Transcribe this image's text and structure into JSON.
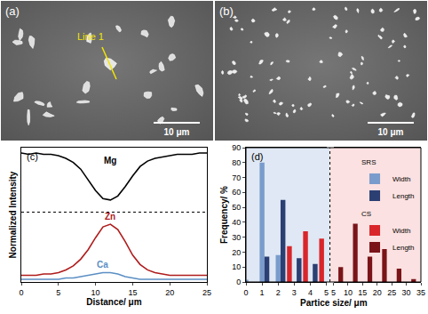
{
  "images": [
    {
      "label": "(a)",
      "annotation": "Line 1",
      "scale_bar": "10 μm"
    },
    {
      "label": "(b)",
      "scale_bar": "10 μm"
    }
  ],
  "chart_data": [
    {
      "label": "(c)",
      "type": "line",
      "x_label": "Distance/ μm",
      "y_label": "Normalized Intensity",
      "x": [
        0,
        1,
        2,
        3,
        4,
        5,
        6,
        7,
        8,
        9,
        10,
        11,
        12,
        13,
        14,
        15,
        16,
        17,
        18,
        19,
        20,
        21,
        22,
        23,
        24,
        25
      ],
      "series": [
        {
          "name": "Mg",
          "color": "#000000",
          "values": [
            0.96,
            0.95,
            0.96,
            0.95,
            0.95,
            0.94,
            0.92,
            0.89,
            0.84,
            0.76,
            0.68,
            0.62,
            0.61,
            0.64,
            0.71,
            0.79,
            0.86,
            0.9,
            0.92,
            0.93,
            0.94,
            0.95,
            0.95,
            0.95,
            0.96,
            0.96
          ]
        },
        {
          "name": "Zn",
          "color": "#b01c1c",
          "values": [
            0.05,
            0.05,
            0.05,
            0.06,
            0.06,
            0.07,
            0.09,
            0.12,
            0.17,
            0.24,
            0.33,
            0.41,
            0.43,
            0.39,
            0.3,
            0.2,
            0.13,
            0.09,
            0.07,
            0.06,
            0.05,
            0.05,
            0.05,
            0.05,
            0.05,
            0.05
          ]
        },
        {
          "name": "Ca",
          "color": "#5b8fc4",
          "values": [
            0.02,
            0.02,
            0.02,
            0.02,
            0.02,
            0.02,
            0.03,
            0.03,
            0.04,
            0.05,
            0.06,
            0.07,
            0.07,
            0.06,
            0.04,
            0.03,
            0.02,
            0.02,
            0.02,
            0.02,
            0.02,
            0.02,
            0.02,
            0.02,
            0.02,
            0.02
          ]
        }
      ],
      "separator": 0.52,
      "xlim": [
        0,
        25
      ],
      "xticks": [
        0,
        5,
        10,
        15,
        20,
        25
      ],
      "ylim": [
        0,
        1
      ],
      "tick_labels": "x",
      "grid": false
    },
    {
      "label": "(d)",
      "type": "bar",
      "x_label": "Partice size/ μm",
      "y_label": "Frequency/ %",
      "series": [
        {
          "name": "Width",
          "group": "SRS",
          "color": "#7a9ccc",
          "axis": "x",
          "x": [
            0,
            1,
            2
          ],
          "values": [
            1.5,
            80,
            18
          ]
        },
        {
          "name": "Length",
          "group": "SRS",
          "color": "#2b3f73",
          "axis": "x",
          "x": [
            1.3,
            2.3,
            3.3,
            4.3
          ],
          "values": [
            17,
            55,
            16,
            12
          ]
        },
        {
          "name": "Width",
          "group": "CS",
          "color": "#d9262b",
          "axis": "x",
          "x": [
            2.7,
            3.7,
            4.7
          ],
          "values": [
            24,
            34,
            29
          ]
        },
        {
          "name": "Length",
          "group": "CS",
          "color": "#7a1418",
          "axis": "x2",
          "x": [
            7.5,
            12.5,
            17.5,
            22.5,
            27.5,
            32.5
          ],
          "values": [
            10,
            39,
            17,
            22,
            9,
            2
          ]
        }
      ],
      "xlim": [
        0,
        5
      ],
      "xticks": [
        0,
        1,
        2,
        3,
        4,
        5
      ],
      "x2lim": [
        5,
        35
      ],
      "x2ticks": [
        5,
        10,
        15,
        20,
        25,
        30,
        35
      ],
      "ylim": [
        0,
        90
      ],
      "yticks": [
        0,
        10,
        20,
        30,
        40,
        50,
        60,
        70,
        80,
        90
      ],
      "legend": "upper right",
      "grid": false
    }
  ]
}
